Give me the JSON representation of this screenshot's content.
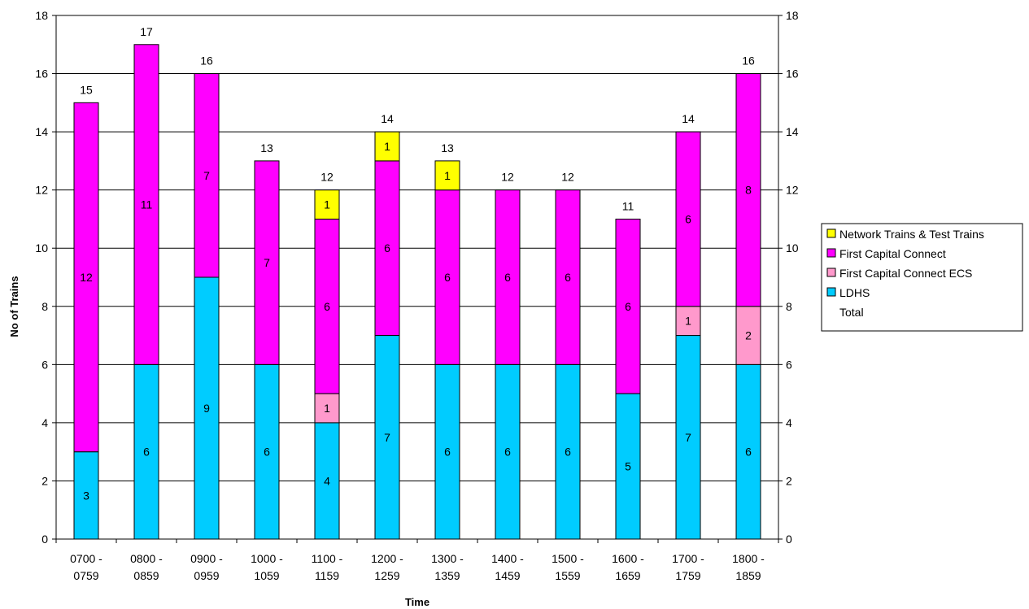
{
  "chart_data": {
    "type": "bar",
    "stacked": true,
    "title": "",
    "xlabel": "Time",
    "ylabel": "No of Trains",
    "ylim": [
      0,
      18
    ],
    "y_tick_step": 2,
    "secondary_y_axis": true,
    "grid": "horizontal",
    "legend_position": "right",
    "categories": [
      [
        "0700 -",
        "0759"
      ],
      [
        "0800 -",
        "0859"
      ],
      [
        "0900 -",
        "0959"
      ],
      [
        "1000 -",
        "1059"
      ],
      [
        "1100 -",
        "1159"
      ],
      [
        "1200 -",
        "1259"
      ],
      [
        "1300 -",
        "1359"
      ],
      [
        "1400 -",
        "1459"
      ],
      [
        "1500 -",
        "1559"
      ],
      [
        "1600 -",
        "1659"
      ],
      [
        "1700 -",
        "1759"
      ],
      [
        "1800 -",
        "1859"
      ]
    ],
    "series": [
      {
        "name": "LDHS",
        "color": "#00ccff",
        "values": [
          3,
          6,
          9,
          6,
          4,
          7,
          6,
          6,
          6,
          5,
          7,
          6
        ]
      },
      {
        "name": "First Capital Connect ECS",
        "color": "#ff99cc",
        "values": [
          0,
          0,
          0,
          0,
          1,
          0,
          0,
          0,
          0,
          0,
          1,
          2
        ]
      },
      {
        "name": "First Capital Connect",
        "color": "#ff00ff",
        "values": [
          12,
          11,
          7,
          7,
          6,
          6,
          6,
          6,
          6,
          6,
          6,
          8
        ]
      },
      {
        "name": "Network Trains & Test Trains",
        "color": "#ffff00",
        "values": [
          0,
          0,
          0,
          0,
          1,
          1,
          1,
          0,
          0,
          0,
          0,
          0
        ]
      }
    ],
    "totals": {
      "name": "Total",
      "values": [
        15,
        17,
        16,
        13,
        12,
        14,
        13,
        12,
        12,
        11,
        14,
        16
      ]
    },
    "legend_order": [
      "Network Trains & Test Trains",
      "First Capital Connect",
      "First Capital Connect ECS",
      "LDHS",
      "Total"
    ]
  }
}
